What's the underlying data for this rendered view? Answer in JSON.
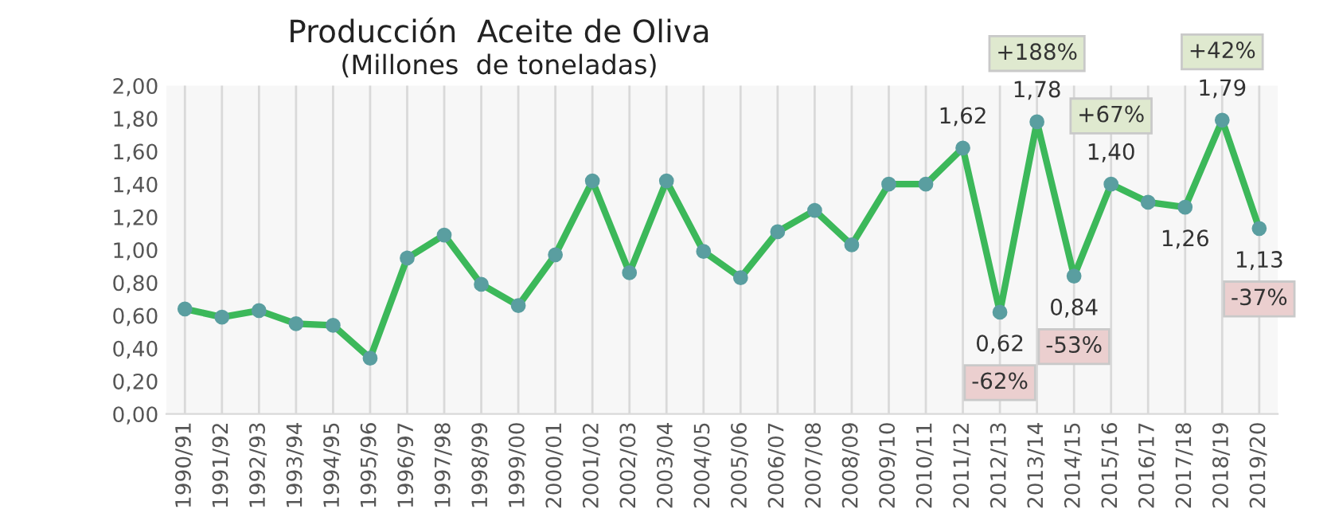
{
  "chart_data": {
    "type": "line",
    "title": "Producción  Aceite de Oliva",
    "subtitle": "(Millones  de toneladas)",
    "categories": [
      "1990/91",
      "1991/92",
      "1992/93",
      "1993/94",
      "1994/95",
      "1995/96",
      "1996/97",
      "1997/98",
      "1998/99",
      "1999/00",
      "2000/01",
      "2001/02",
      "2002/03",
      "2003/04",
      "2004/05",
      "2005/06",
      "2006/07",
      "2007/08",
      "2008/09",
      "2009/10",
      "2010/11",
      "2011/12",
      "2012/13",
      "2013/14",
      "2014/15",
      "2015/16",
      "2016/17",
      "2017/18",
      "2018/19",
      "2019/20"
    ],
    "series": [
      {
        "color": "#3cb85a",
        "values": [
          0.64,
          0.59,
          0.63,
          0.55,
          0.54,
          0.34,
          0.95,
          1.09,
          0.79,
          0.66,
          0.97,
          1.42,
          0.86,
          1.42,
          0.99,
          0.83,
          1.11,
          1.24,
          1.03,
          1.4,
          1.4,
          1.62,
          0.62,
          1.78,
          0.84,
          1.4,
          1.29,
          1.26,
          1.79,
          1.13
        ],
        "value_labels": [
          null,
          null,
          null,
          null,
          null,
          null,
          null,
          null,
          null,
          null,
          null,
          null,
          null,
          null,
          null,
          null,
          null,
          null,
          null,
          null,
          null,
          "1,62",
          "0,62",
          "1,78",
          "0,84",
          "1,40",
          null,
          "1,26",
          "1,79",
          "1,13"
        ]
      }
    ],
    "marker": "circle",
    "ylim": [
      0,
      2
    ],
    "yticks": [
      {
        "value": 0,
        "label": "0,00"
      },
      {
        "value": 0.2,
        "label": "0,20"
      },
      {
        "value": 0.4,
        "label": "0,40"
      },
      {
        "value": 0.6,
        "label": "0,60"
      },
      {
        "value": 0.8,
        "label": "0,80"
      },
      {
        "value": 1.0,
        "label": "1,00"
      },
      {
        "value": 1.2,
        "label": "1,20"
      },
      {
        "value": 1.4,
        "label": "1,40"
      },
      {
        "value": 1.6,
        "label": "1,60"
      },
      {
        "value": 1.8,
        "label": "1,80"
      },
      {
        "value": 2.0,
        "label": "2,00"
      }
    ],
    "grid": "x",
    "annotations": [
      {
        "text": "-62%",
        "x": "2012/13",
        "y": 0.62
      },
      {
        "text": "+188%",
        "x": "2013/14",
        "y": 1.78
      },
      {
        "text": "-53%",
        "x": "2014/15",
        "y": 0.84
      },
      {
        "text": "+67%",
        "x": "2015/16",
        "y": 1.4
      },
      {
        "text": "+42%",
        "x": "2018/19",
        "y": 1.79
      },
      {
        "text": "-37%",
        "x": "2019/20",
        "y": 1.13
      }
    ]
  }
}
